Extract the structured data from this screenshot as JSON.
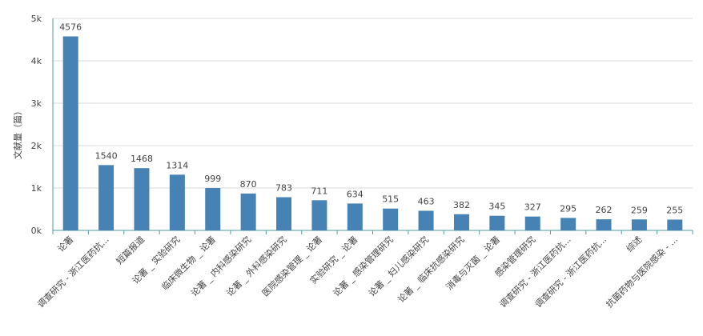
{
  "colors": {
    "bar": "#4682b4",
    "grid": "#d9d9d9",
    "axis": "#4f9ea1",
    "text": "#444444"
  },
  "chart_data": {
    "type": "bar",
    "ylabel": "文献量（篇）",
    "ylim": [
      0,
      5000
    ],
    "yticks": [
      0,
      1000,
      2000,
      3000,
      4000,
      5000
    ],
    "ytick_labels": [
      "0k",
      "1k",
      "2k",
      "3k",
      "4k",
      "5k"
    ],
    "grid": true,
    "categories": [
      "论著",
      "调查研究 - 浙江医药抗...",
      "短篇报道",
      "论著 _ 实验研究",
      "临床微生物 _ 论著",
      "论著 _ 内科感染研究",
      "论著 _ 外科感染研究",
      "医院感染管理 _ 论著",
      "实验研究 _ 论著",
      "论著 _ 感染管理研究",
      "论著 _ 妇儿感染研究",
      "论著 _ 临床抗感染研究",
      "消毒与灭菌 _ 论著",
      "感染管理研究",
      "调查研究 - 浙江医药抗...",
      "调查研究 - 浙江医药抗...",
      "综述",
      "抗菌药物与医院感染 - ..."
    ],
    "values": [
      4576,
      1540,
      1468,
      1314,
      999,
      870,
      783,
      711,
      634,
      515,
      463,
      382,
      345,
      327,
      295,
      262,
      259,
      255
    ]
  }
}
